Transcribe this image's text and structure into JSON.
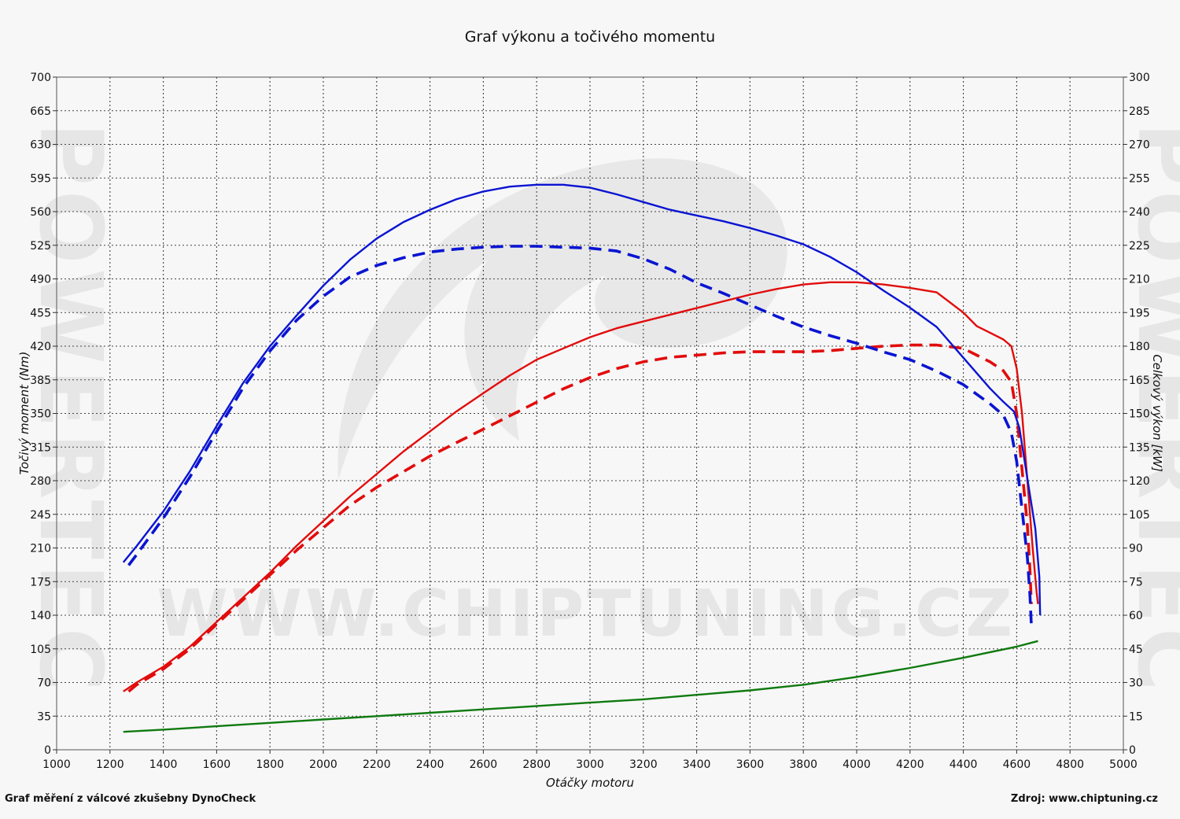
{
  "title": "Graf výkonu a točivého momentu",
  "footer_left": "Graf měření z válcové zkušebny DynoCheck",
  "footer_right": "Zdroj: www.chiptuning.cz",
  "watermark_logo_text": "POWERTEC",
  "watermark_url_text": "WWW.CHIPTUNING.CZ",
  "chart_data": {
    "type": "line",
    "title": "Graf výkonu a točivého momentu",
    "xlabel": "Otáčky motoru",
    "ylabel_left": "Točivý moment (Nm)",
    "ylabel_right": "Celkový výkon [kW]",
    "xlim": [
      1000,
      5000
    ],
    "ylim_left": [
      0,
      700
    ],
    "ylim_right": [
      0,
      300
    ],
    "x_ticks": [
      1000,
      1200,
      1400,
      1600,
      1800,
      2000,
      2200,
      2400,
      2600,
      2800,
      3000,
      3200,
      3400,
      3600,
      3800,
      4000,
      4200,
      4400,
      4600,
      4800,
      5000
    ],
    "y_left_ticks": [
      0,
      35,
      70,
      105,
      140,
      175,
      210,
      245,
      280,
      315,
      350,
      385,
      420,
      455,
      490,
      525,
      560,
      595,
      630,
      665,
      700
    ],
    "y_right_ticks": [
      0,
      15,
      30,
      45,
      60,
      75,
      90,
      105,
      120,
      135,
      150,
      165,
      180,
      195,
      210,
      225,
      240,
      255,
      270,
      285,
      300
    ],
    "grid": true,
    "legend": "none",
    "series": [
      {
        "axis": "left",
        "color": "#0a14d2",
        "style": "solid",
        "points": [
          [
            1250,
            195
          ],
          [
            1300,
            212
          ],
          [
            1400,
            248
          ],
          [
            1500,
            290
          ],
          [
            1600,
            337
          ],
          [
            1700,
            382
          ],
          [
            1800,
            420
          ],
          [
            1900,
            452
          ],
          [
            2000,
            483
          ],
          [
            2100,
            510
          ],
          [
            2200,
            532
          ],
          [
            2300,
            549
          ],
          [
            2400,
            562
          ],
          [
            2500,
            573
          ],
          [
            2600,
            581
          ],
          [
            2700,
            586
          ],
          [
            2800,
            588
          ],
          [
            2900,
            588
          ],
          [
            3000,
            585
          ],
          [
            3100,
            578
          ],
          [
            3200,
            570
          ],
          [
            3300,
            562
          ],
          [
            3400,
            556
          ],
          [
            3500,
            550
          ],
          [
            3600,
            543
          ],
          [
            3700,
            535
          ],
          [
            3800,
            526
          ],
          [
            3900,
            513
          ],
          [
            4000,
            497
          ],
          [
            4100,
            478
          ],
          [
            4200,
            460
          ],
          [
            4300,
            440
          ],
          [
            4400,
            408
          ],
          [
            4500,
            376
          ],
          [
            4550,
            362
          ],
          [
            4590,
            352
          ],
          [
            4610,
            335
          ],
          [
            4630,
            300
          ],
          [
            4650,
            265
          ],
          [
            4670,
            230
          ],
          [
            4685,
            180
          ],
          [
            4688,
            140
          ]
        ]
      },
      {
        "axis": "left",
        "color": "#0a14d2",
        "style": "dashed",
        "points": [
          [
            1270,
            192
          ],
          [
            1300,
            203
          ],
          [
            1400,
            241
          ],
          [
            1500,
            284
          ],
          [
            1600,
            331
          ],
          [
            1700,
            377
          ],
          [
            1800,
            415
          ],
          [
            1900,
            447
          ],
          [
            2000,
            472
          ],
          [
            2100,
            492
          ],
          [
            2200,
            504
          ],
          [
            2300,
            512
          ],
          [
            2400,
            518
          ],
          [
            2500,
            521
          ],
          [
            2600,
            523
          ],
          [
            2700,
            524
          ],
          [
            2800,
            524
          ],
          [
            2900,
            523
          ],
          [
            3000,
            522
          ],
          [
            3100,
            519
          ],
          [
            3200,
            511
          ],
          [
            3300,
            500
          ],
          [
            3400,
            486
          ],
          [
            3500,
            475
          ],
          [
            3600,
            463
          ],
          [
            3700,
            451
          ],
          [
            3800,
            440
          ],
          [
            3900,
            431
          ],
          [
            4000,
            423
          ],
          [
            4100,
            414
          ],
          [
            4200,
            406
          ],
          [
            4300,
            394
          ],
          [
            4400,
            380
          ],
          [
            4500,
            360
          ],
          [
            4550,
            348
          ],
          [
            4580,
            330
          ],
          [
            4600,
            300
          ],
          [
            4620,
            250
          ],
          [
            4640,
            200
          ],
          [
            4650,
            160
          ],
          [
            4655,
            130
          ]
        ]
      },
      {
        "axis": "right",
        "color": "#e20c0c",
        "style": "solid",
        "points": [
          [
            1250,
            26
          ],
          [
            1300,
            30
          ],
          [
            1400,
            37
          ],
          [
            1500,
            46
          ],
          [
            1600,
            57
          ],
          [
            1700,
            68
          ],
          [
            1800,
            79
          ],
          [
            1900,
            91
          ],
          [
            2000,
            102
          ],
          [
            2100,
            113
          ],
          [
            2200,
            123
          ],
          [
            2300,
            133
          ],
          [
            2400,
            142
          ],
          [
            2500,
            151
          ],
          [
            2600,
            159
          ],
          [
            2700,
            167
          ],
          [
            2800,
            174
          ],
          [
            2900,
            179
          ],
          [
            3000,
            184
          ],
          [
            3100,
            188
          ],
          [
            3200,
            191
          ],
          [
            3300,
            194
          ],
          [
            3400,
            197
          ],
          [
            3500,
            200
          ],
          [
            3600,
            203
          ],
          [
            3700,
            205.5
          ],
          [
            3800,
            207.5
          ],
          [
            3900,
            208.5
          ],
          [
            4000,
            208.5
          ],
          [
            4100,
            207.5
          ],
          [
            4200,
            206
          ],
          [
            4300,
            204
          ],
          [
            4400,
            195
          ],
          [
            4450,
            189
          ],
          [
            4500,
            186
          ],
          [
            4550,
            183
          ],
          [
            4580,
            180
          ],
          [
            4600,
            170
          ],
          [
            4620,
            150
          ],
          [
            4640,
            120
          ],
          [
            4660,
            90
          ],
          [
            4675,
            70
          ],
          [
            4680,
            65
          ]
        ]
      },
      {
        "axis": "right",
        "color": "#e20c0c",
        "style": "dashed",
        "points": [
          [
            1270,
            26
          ],
          [
            1300,
            29
          ],
          [
            1400,
            36
          ],
          [
            1500,
            45
          ],
          [
            1600,
            56
          ],
          [
            1700,
            67
          ],
          [
            1800,
            78
          ],
          [
            1900,
            89
          ],
          [
            2000,
            99
          ],
          [
            2100,
            109
          ],
          [
            2200,
            117
          ],
          [
            2300,
            124
          ],
          [
            2400,
            131
          ],
          [
            2500,
            137
          ],
          [
            2600,
            143
          ],
          [
            2700,
            149
          ],
          [
            2800,
            155
          ],
          [
            2900,
            161
          ],
          [
            3000,
            166
          ],
          [
            3100,
            170
          ],
          [
            3200,
            173
          ],
          [
            3300,
            175
          ],
          [
            3400,
            176
          ],
          [
            3500,
            177
          ],
          [
            3600,
            177.5
          ],
          [
            3700,
            177.5
          ],
          [
            3800,
            177.5
          ],
          [
            3900,
            178
          ],
          [
            4000,
            179
          ],
          [
            4100,
            180
          ],
          [
            4200,
            180.5
          ],
          [
            4300,
            180.5
          ],
          [
            4400,
            179
          ],
          [
            4450,
            176
          ],
          [
            4500,
            173
          ],
          [
            4550,
            169
          ],
          [
            4580,
            164
          ],
          [
            4600,
            150
          ],
          [
            4620,
            125
          ],
          [
            4640,
            100
          ],
          [
            4650,
            80
          ],
          [
            4655,
            65
          ]
        ]
      },
      {
        "axis": "right",
        "color": "#0f7a0f",
        "style": "solid",
        "points": [
          [
            1250,
            8
          ],
          [
            1400,
            9
          ],
          [
            1600,
            10.5
          ],
          [
            1800,
            12
          ],
          [
            2000,
            13.5
          ],
          [
            2200,
            15
          ],
          [
            2400,
            16.5
          ],
          [
            2600,
            18
          ],
          [
            2800,
            19.5
          ],
          [
            3000,
            21
          ],
          [
            3200,
            22.5
          ],
          [
            3400,
            24.5
          ],
          [
            3600,
            26.5
          ],
          [
            3800,
            29
          ],
          [
            4000,
            32.5
          ],
          [
            4200,
            36.5
          ],
          [
            4400,
            41
          ],
          [
            4600,
            46
          ],
          [
            4680,
            48.5
          ]
        ]
      }
    ]
  }
}
